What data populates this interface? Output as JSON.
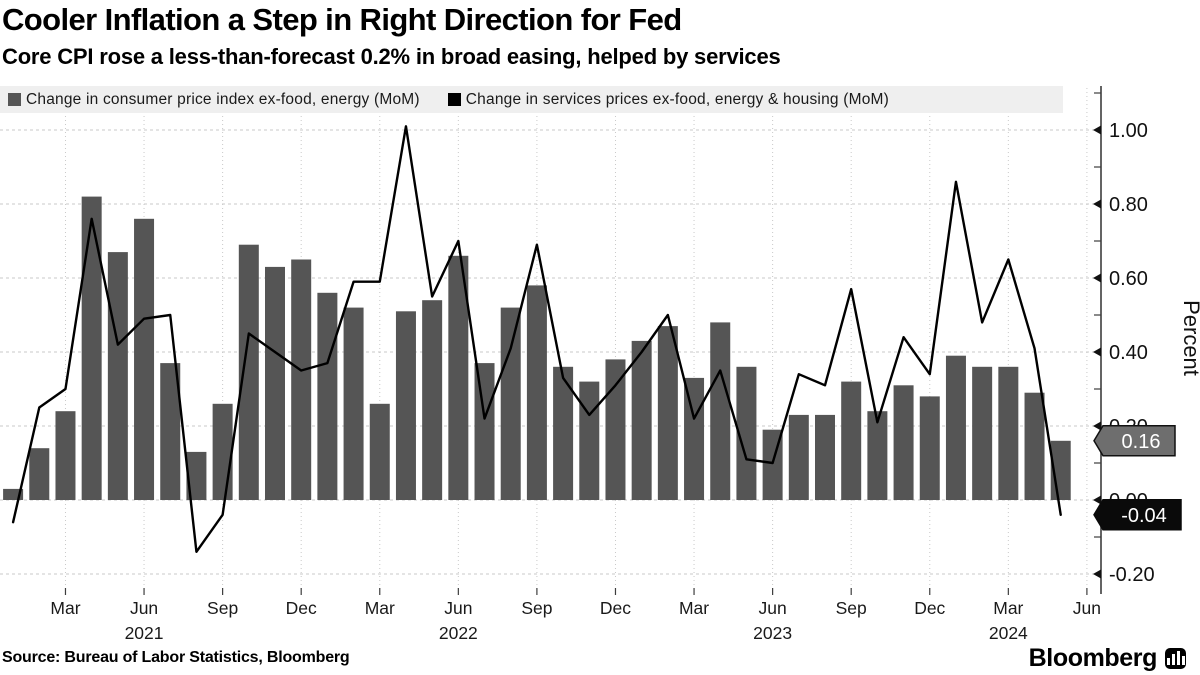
{
  "header": {
    "title": "Cooler Inflation a Step in Right Direction for Fed",
    "subtitle": "Core CPI rose a less-than-forecast 0.2% in broad easing, helped by services"
  },
  "legend": {
    "background": "#efefef",
    "items": [
      {
        "label": "Change in consumer price index ex-food, energy (MoM)",
        "color": "#555555"
      },
      {
        "label": "Change in services prices ex-food, energy & housing (MoM)",
        "color": "#000000"
      }
    ]
  },
  "chart_data": {
    "type": "combo-bar-line",
    "categories": [
      "Jan 2021",
      "Feb 2021",
      "Mar 2021",
      "Apr 2021",
      "May 2021",
      "Jun 2021",
      "Jul 2021",
      "Aug 2021",
      "Sep 2021",
      "Oct 2021",
      "Nov 2021",
      "Dec 2021",
      "Jan 2022",
      "Feb 2022",
      "Mar 2022",
      "Apr 2022",
      "May 2022",
      "Jun 2022",
      "Jul 2022",
      "Aug 2022",
      "Sep 2022",
      "Oct 2022",
      "Nov 2022",
      "Dec 2022",
      "Jan 2023",
      "Feb 2023",
      "Mar 2023",
      "Apr 2023",
      "May 2023",
      "Jun 2023",
      "Jul 2023",
      "Aug 2023",
      "Sep 2023",
      "Oct 2023",
      "Nov 2023",
      "Dec 2023",
      "Jan 2024",
      "Feb 2024",
      "Mar 2024",
      "Apr 2024",
      "May 2024"
    ],
    "series": [
      {
        "name": "Change in consumer price index ex-food, energy (MoM)",
        "type": "bar",
        "color": "#555555",
        "values": [
          0.03,
          0.14,
          0.24,
          0.82,
          0.67,
          0.76,
          0.37,
          0.13,
          0.26,
          0.69,
          0.63,
          0.65,
          0.56,
          0.52,
          0.26,
          0.51,
          0.54,
          0.66,
          0.37,
          0.52,
          0.58,
          0.36,
          0.32,
          0.38,
          0.43,
          0.47,
          0.33,
          0.48,
          0.36,
          0.19,
          0.23,
          0.23,
          0.32,
          0.24,
          0.31,
          0.28,
          0.39,
          0.36,
          0.36,
          0.29,
          0.16
        ]
      },
      {
        "name": "Change in services prices ex-food, energy & housing (MoM)",
        "type": "line",
        "color": "#000000",
        "values": [
          -0.06,
          0.25,
          0.3,
          0.76,
          0.42,
          0.49,
          0.5,
          -0.14,
          -0.04,
          0.45,
          0.4,
          0.35,
          0.37,
          0.59,
          0.59,
          1.01,
          0.55,
          0.7,
          0.22,
          0.41,
          0.69,
          0.33,
          0.23,
          0.31,
          0.4,
          0.5,
          0.22,
          0.35,
          0.11,
          0.1,
          0.34,
          0.31,
          0.57,
          0.21,
          0.44,
          0.34,
          0.86,
          0.48,
          0.65,
          0.41,
          -0.04
        ]
      }
    ],
    "ylabel": "Percent",
    "ylim": [
      -0.25,
      1.11
    ],
    "x_slots": 42,
    "grid": true,
    "legend_position": "top",
    "yticks": [
      {
        "value": 1.0,
        "label": "1.00"
      },
      {
        "value": 0.8,
        "label": "0.80"
      },
      {
        "value": 0.6,
        "label": "0.60"
      },
      {
        "value": 0.4,
        "label": "0.40"
      },
      {
        "value": 0.2,
        "label": "0.20"
      },
      {
        "value": 0.0,
        "label": "0.00"
      },
      {
        "value": -0.2,
        "label": "-0.20"
      }
    ],
    "minor_yticks": [
      1.1,
      0.9,
      0.7,
      0.5,
      0.3,
      0.1,
      -0.1
    ],
    "xticks": [
      {
        "i": 2,
        "label": "Mar"
      },
      {
        "i": 5,
        "label": "Jun",
        "year": "2021"
      },
      {
        "i": 8,
        "label": "Sep"
      },
      {
        "i": 11,
        "label": "Dec"
      },
      {
        "i": 14,
        "label": "Mar"
      },
      {
        "i": 17,
        "label": "Jun",
        "year": "2022"
      },
      {
        "i": 20,
        "label": "Sep"
      },
      {
        "i": 23,
        "label": "Dec"
      },
      {
        "i": 26,
        "label": "Mar"
      },
      {
        "i": 29,
        "label": "Jun",
        "year": "2023"
      },
      {
        "i": 32,
        "label": "Sep"
      },
      {
        "i": 35,
        "label": "Dec"
      },
      {
        "i": 38,
        "label": "Mar",
        "year": "2024"
      },
      {
        "i": 41,
        "label": "Jun"
      }
    ],
    "end_labels": [
      {
        "text": "0.16",
        "value": 0.16,
        "fill": "#6e6e6e",
        "text_color": "#ffffff",
        "border": "#111111"
      },
      {
        "text": "-0.04",
        "value": -0.04,
        "fill": "#0a0a0a",
        "text_color": "#ffffff",
        "border": "#0a0a0a"
      }
    ],
    "grid_color": "#c9c9c9",
    "axis_color": "#3d3d3d",
    "tick_color": "#111111"
  },
  "footer": {
    "source": "Source: Bureau of Labor Statistics, Bloomberg",
    "brand": "Bloomberg",
    "brand_icon": "bar-chart-icon"
  }
}
